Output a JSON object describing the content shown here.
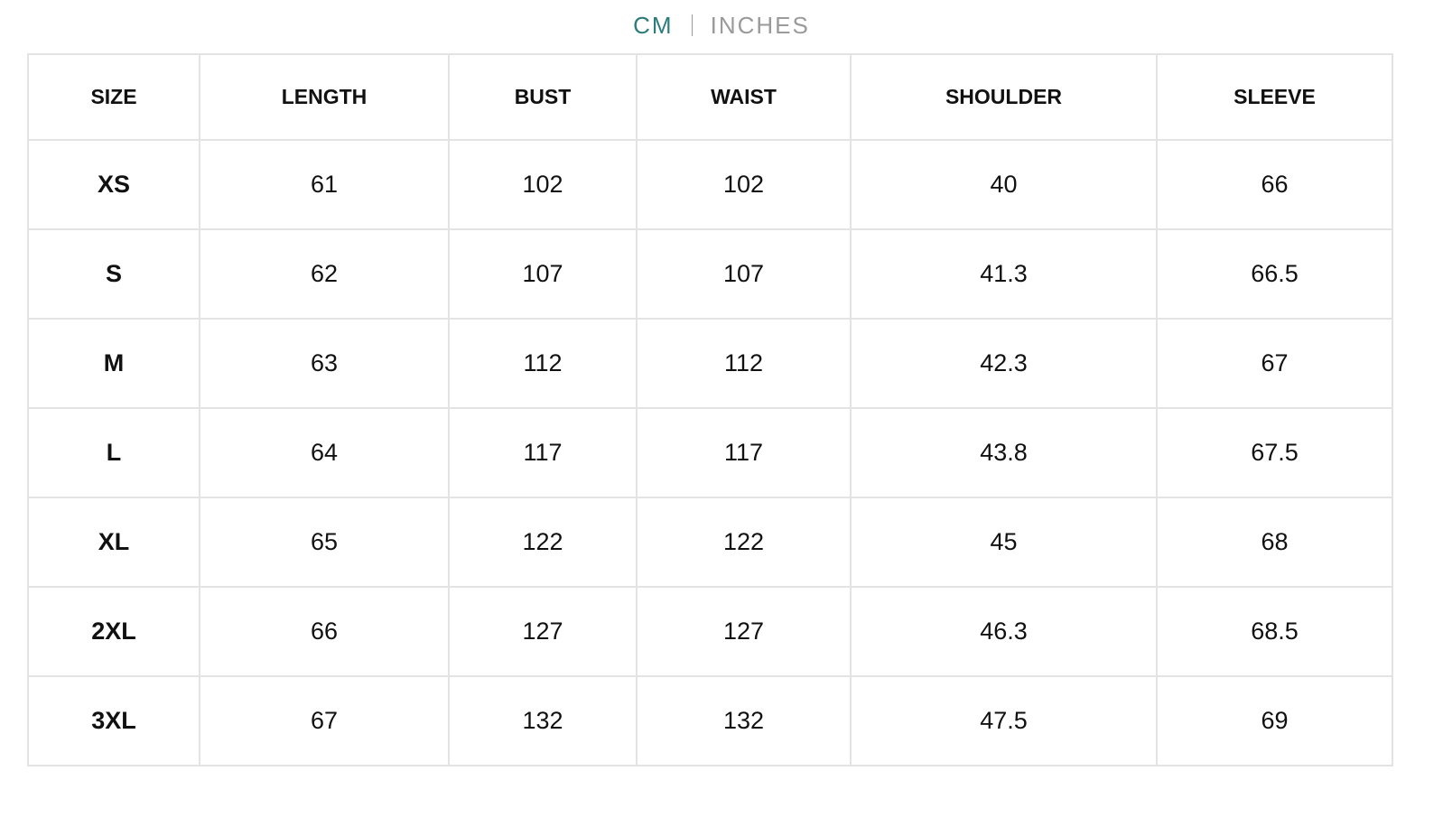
{
  "tabs": [
    "CM",
    "INCHES"
  ],
  "table": {
    "headers": [
      "SIZE",
      "LENGTH",
      "BUST",
      "WAIST",
      "SHOULDER",
      "SLEEVE"
    ],
    "rows": [
      [
        "XS",
        61,
        102,
        102,
        40,
        66
      ],
      [
        "S",
        62,
        107,
        107,
        41.3,
        66.5
      ],
      [
        "M",
        63,
        112,
        112,
        42.3,
        67
      ],
      [
        "L",
        64,
        117,
        117,
        43.8,
        67.5
      ],
      [
        "XL",
        65,
        122,
        122,
        45,
        68
      ],
      [
        "2XL",
        66,
        127,
        127,
        46.3,
        68.5
      ],
      [
        "3XL",
        67,
        132,
        132,
        47.5,
        69
      ]
    ]
  }
}
